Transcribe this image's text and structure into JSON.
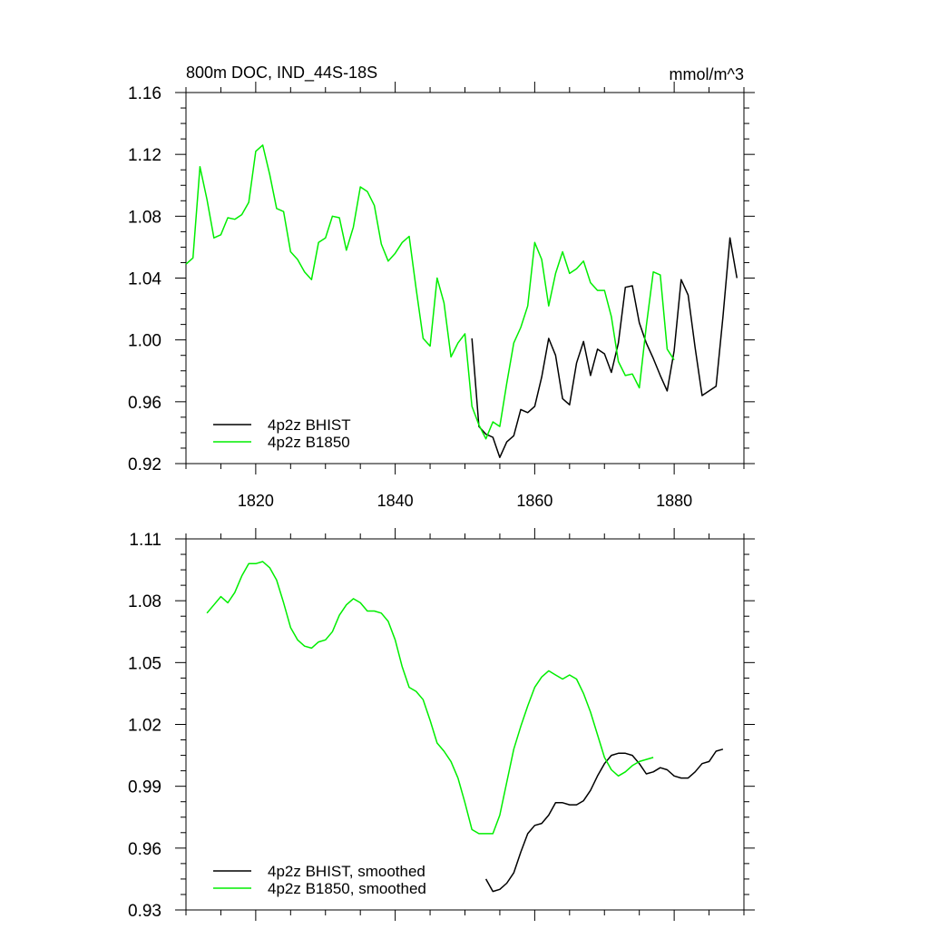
{
  "chart_data": [
    {
      "type": "line",
      "title": "800m DOC, IND_44S-18S",
      "units": "mmol/m^3",
      "xlim": [
        1810,
        1890
      ],
      "ylim": [
        0.92,
        1.16
      ],
      "x_tick_labels": [
        "1820",
        "1840",
        "1860",
        "1880"
      ],
      "y_tick_labels": [
        "0.92",
        "0.96",
        "1.00",
        "1.04",
        "1.08",
        "1.12",
        "1.16"
      ],
      "legend_position": "bottom-left",
      "series": [
        {
          "name": "4p2z BHIST",
          "color": "#000000",
          "x": [
            1851,
            1852,
            1853,
            1854,
            1855,
            1856,
            1857,
            1858,
            1859,
            1860,
            1861,
            1862,
            1863,
            1864,
            1865,
            1866,
            1867,
            1868,
            1869,
            1870,
            1871,
            1872,
            1873,
            1874,
            1875,
            1876,
            1877,
            1878,
            1879,
            1880,
            1881,
            1882,
            1883,
            1884,
            1885,
            1886,
            1887,
            1888,
            1889
          ],
          "y": [
            1.001,
            0.944,
            0.939,
            0.937,
            0.924,
            0.934,
            0.938,
            0.955,
            0.953,
            0.957,
            0.976,
            1.001,
            0.99,
            0.962,
            0.958,
            0.985,
            0.999,
            0.977,
            0.994,
            0.991,
            0.979,
            0.998,
            1.034,
            1.035,
            1.011,
            0.998,
            0.988,
            0.977,
            0.967,
            0.993,
            1.039,
            1.029,
            0.995,
            0.964,
            0.967,
            0.97,
            1.015,
            1.066,
            1.04
          ]
        },
        {
          "name": "4p2z B1850",
          "color": "#00ee00",
          "x": [
            1810,
            1811,
            1812,
            1813,
            1814,
            1815,
            1816,
            1817,
            1818,
            1819,
            1820,
            1821,
            1822,
            1823,
            1824,
            1825,
            1826,
            1827,
            1828,
            1829,
            1830,
            1831,
            1832,
            1833,
            1834,
            1835,
            1836,
            1837,
            1838,
            1839,
            1840,
            1841,
            1842,
            1843,
            1844,
            1845,
            1846,
            1847,
            1848,
            1849,
            1850,
            1851,
            1852,
            1853,
            1854,
            1855,
            1856,
            1857,
            1858,
            1859,
            1860,
            1861,
            1862,
            1863,
            1864,
            1865,
            1866,
            1867,
            1868,
            1869,
            1870,
            1871,
            1872,
            1873,
            1874,
            1875,
            1876,
            1877,
            1878,
            1879,
            1880
          ],
          "y": [
            1.049,
            1.053,
            1.112,
            1.091,
            1.066,
            1.068,
            1.079,
            1.078,
            1.081,
            1.089,
            1.122,
            1.126,
            1.107,
            1.085,
            1.083,
            1.057,
            1.052,
            1.044,
            1.039,
            1.063,
            1.066,
            1.08,
            1.079,
            1.058,
            1.073,
            1.099,
            1.096,
            1.087,
            1.062,
            1.051,
            1.056,
            1.063,
            1.067,
            1.033,
            1.001,
            0.996,
            1.04,
            1.024,
            0.989,
            0.998,
            1.004,
            0.957,
            0.945,
            0.936,
            0.947,
            0.944,
            0.972,
            0.998,
            1.008,
            1.022,
            1.063,
            1.052,
            1.022,
            1.043,
            1.057,
            1.043,
            1.046,
            1.051,
            1.037,
            1.032,
            1.032,
            1.015,
            0.986,
            0.977,
            0.978,
            0.969,
            1.009,
            1.044,
            1.042,
            0.994,
            0.987
          ]
        }
      ]
    },
    {
      "type": "line",
      "title": "",
      "units": "",
      "xlim": [
        1810,
        1890
      ],
      "ylim": [
        0.93,
        1.11
      ],
      "x_tick_labels": [],
      "y_tick_labels": [
        "0.93",
        "0.96",
        "0.99",
        "1.02",
        "1.05",
        "1.08",
        "1.11"
      ],
      "legend_position": "bottom-left",
      "series": [
        {
          "name": "4p2z BHIST, smoothed",
          "color": "#000000",
          "x": [
            1853,
            1854,
            1855,
            1856,
            1857,
            1858,
            1859,
            1860,
            1861,
            1862,
            1863,
            1864,
            1865,
            1866,
            1867,
            1868,
            1869,
            1870,
            1871,
            1872,
            1873,
            1874,
            1875,
            1876,
            1877,
            1878,
            1879,
            1880,
            1881,
            1882,
            1883,
            1884,
            1885,
            1886,
            1887
          ],
          "y": [
            0.945,
            0.939,
            0.94,
            0.943,
            0.948,
            0.958,
            0.967,
            0.971,
            0.972,
            0.976,
            0.982,
            0.982,
            0.981,
            0.981,
            0.983,
            0.988,
            0.995,
            1.001,
            1.005,
            1.006,
            1.006,
            1.005,
            1.001,
            0.996,
            0.997,
            0.999,
            0.998,
            0.995,
            0.994,
            0.994,
            0.997,
            1.001,
            1.002,
            1.007,
            1.008
          ]
        },
        {
          "name": "4p2z B1850, smoothed",
          "color": "#00ee00",
          "x": [
            1813,
            1814,
            1815,
            1816,
            1817,
            1818,
            1819,
            1820,
            1821,
            1822,
            1823,
            1824,
            1825,
            1826,
            1827,
            1828,
            1829,
            1830,
            1831,
            1832,
            1833,
            1834,
            1835,
            1836,
            1837,
            1838,
            1839,
            1840,
            1841,
            1842,
            1843,
            1844,
            1845,
            1846,
            1847,
            1848,
            1849,
            1850,
            1851,
            1852,
            1853,
            1854,
            1855,
            1856,
            1857,
            1858,
            1859,
            1860,
            1861,
            1862,
            1863,
            1864,
            1865,
            1866,
            1867,
            1868,
            1869,
            1870,
            1871,
            1872,
            1873,
            1874,
            1875,
            1876,
            1877
          ],
          "y": [
            1.074,
            1.078,
            1.082,
            1.079,
            1.084,
            1.092,
            1.098,
            1.098,
            1.099,
            1.096,
            1.09,
            1.079,
            1.067,
            1.061,
            1.058,
            1.057,
            1.06,
            1.061,
            1.065,
            1.073,
            1.078,
            1.081,
            1.079,
            1.075,
            1.075,
            1.074,
            1.07,
            1.061,
            1.048,
            1.038,
            1.036,
            1.032,
            1.022,
            1.011,
            1.007,
            1.002,
            0.994,
            0.982,
            0.969,
            0.967,
            0.967,
            0.967,
            0.976,
            0.992,
            1.008,
            1.019,
            1.029,
            1.038,
            1.043,
            1.046,
            1.044,
            1.042,
            1.044,
            1.042,
            1.035,
            1.026,
            1.015,
            1.004,
            0.998,
            0.995,
            0.997,
            1.0,
            1.002,
            1.003,
            1.004
          ]
        }
      ]
    }
  ]
}
